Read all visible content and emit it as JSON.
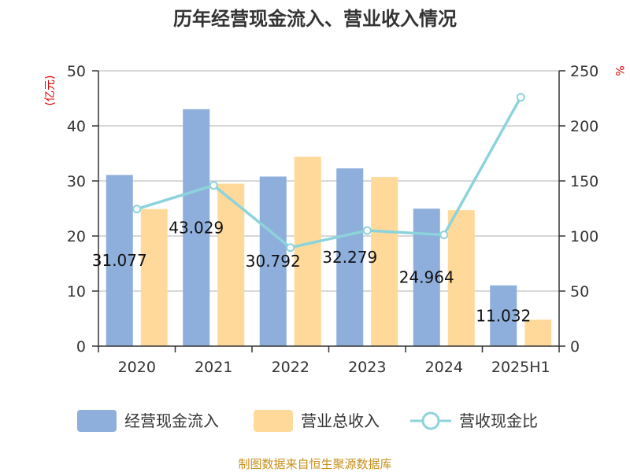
{
  "title": "历年经营现金流入、营业收入情况",
  "left_unit": "(亿元)",
  "right_unit": "%",
  "source": "制图数据来自恒生聚源数据库",
  "legend": {
    "bar1": "经营现金流入",
    "bar2": "营业总收入",
    "line": "营收现金比"
  },
  "colors": {
    "bar1": "#8eaedb",
    "bar2": "#ffd99a",
    "line": "#8dd3db",
    "axis": "#333333",
    "grid": "#cccccc"
  },
  "chart_data": {
    "type": "bar",
    "categories": [
      "2020",
      "2021",
      "2022",
      "2023",
      "2024",
      "2025H1"
    ],
    "series": [
      {
        "name": "经营现金流入",
        "axis": "left",
        "values": [
          31.077,
          43.029,
          30.792,
          32.279,
          24.964,
          11.032
        ],
        "data_labels": [
          "31.077",
          "43.029",
          "30.792",
          "32.279",
          "24.964",
          "11.032"
        ]
      },
      {
        "name": "营业总收入",
        "axis": "left",
        "values": [
          24.9,
          29.5,
          34.4,
          30.7,
          24.7,
          4.8
        ]
      },
      {
        "name": "营收现金比",
        "axis": "right",
        "type": "line",
        "values": [
          124.5,
          146.0,
          89.5,
          105.0,
          101.0,
          226.0
        ]
      }
    ],
    "y_left": {
      "min": 0,
      "max": 50,
      "ticks": [
        0,
        10,
        20,
        30,
        40,
        50
      ]
    },
    "y_right": {
      "min": 0,
      "max": 250,
      "ticks": [
        0,
        50,
        100,
        150,
        200,
        250
      ]
    },
    "grid": true,
    "legend_position": "bottom"
  }
}
